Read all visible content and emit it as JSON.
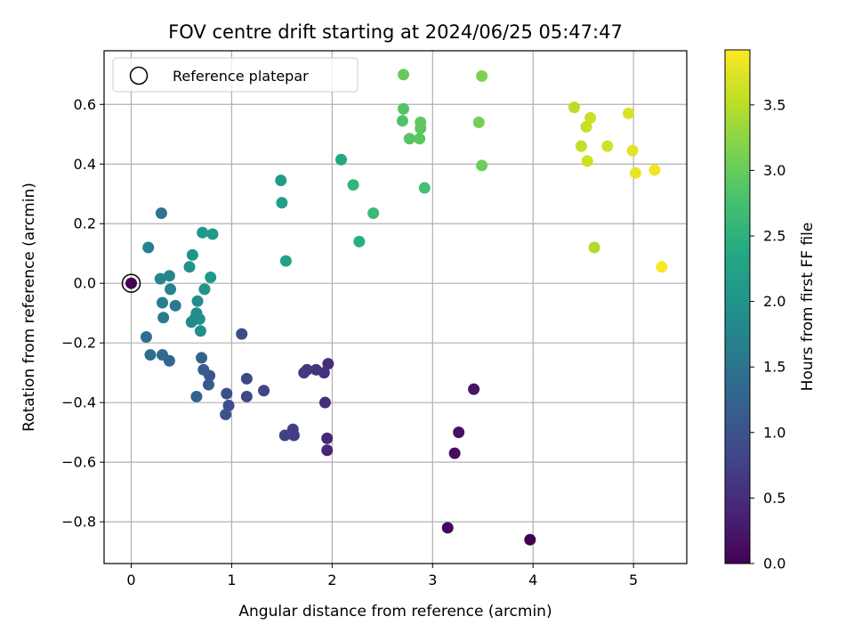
{
  "chart_data": {
    "type": "scatter",
    "title": "FOV centre drift starting at 2024/06/25 05:47:47",
    "xlabel": "Angular distance from reference (arcmin)",
    "ylabel": "Rotation from reference (arcmin)",
    "xlim": [
      -0.27,
      5.53
    ],
    "ylim": [
      -0.94,
      0.78
    ],
    "xticks": [
      0,
      1,
      2,
      3,
      4,
      5
    ],
    "xtick_labels": [
      "0",
      "1",
      "2",
      "3",
      "4",
      "5"
    ],
    "yticks": [
      -0.8,
      -0.6,
      -0.4,
      -0.2,
      0.0,
      0.2,
      0.4,
      0.6
    ],
    "ytick_labels": [
      "−0.8",
      "−0.6",
      "−0.4",
      "−0.2",
      "0.0",
      "0.2",
      "0.4",
      "0.6"
    ],
    "grid": true,
    "legend": {
      "position": "upper-left",
      "entries": [
        {
          "label": "Reference platepar",
          "marker": "open-circle"
        }
      ]
    },
    "reference_point": {
      "x": 0,
      "y": 0
    },
    "colormap": "viridis",
    "colorbar": {
      "label": "Hours from first FF file",
      "range": [
        0,
        3.92
      ],
      "ticks": [
        0.0,
        0.5,
        1.0,
        1.5,
        2.0,
        2.5,
        3.0,
        3.5
      ],
      "tick_labels": [
        "0.0",
        "0.5",
        "1.0",
        "1.5",
        "2.0",
        "2.5",
        "3.0",
        "3.5"
      ]
    },
    "points": [
      {
        "x": 3.97,
        "y": -0.86,
        "c": 0.0
      },
      {
        "x": 3.15,
        "y": -0.82,
        "c": 0.07
      },
      {
        "x": 3.22,
        "y": -0.57,
        "c": 0.13
      },
      {
        "x": 3.26,
        "y": -0.5,
        "c": 0.18
      },
      {
        "x": 3.41,
        "y": -0.355,
        "c": 0.22
      },
      {
        "x": 1.95,
        "y": -0.56,
        "c": 0.4
      },
      {
        "x": 1.95,
        "y": -0.52,
        "c": 0.45
      },
      {
        "x": 1.93,
        "y": -0.4,
        "c": 0.5
      },
      {
        "x": 1.96,
        "y": -0.27,
        "c": 0.52
      },
      {
        "x": 1.92,
        "y": -0.3,
        "c": 0.55
      },
      {
        "x": 1.84,
        "y": -0.29,
        "c": 0.58
      },
      {
        "x": 1.75,
        "y": -0.29,
        "c": 0.62
      },
      {
        "x": 1.72,
        "y": -0.3,
        "c": 0.65
      },
      {
        "x": 1.62,
        "y": -0.51,
        "c": 0.68
      },
      {
        "x": 1.61,
        "y": -0.49,
        "c": 0.72
      },
      {
        "x": 1.53,
        "y": -0.51,
        "c": 0.76
      },
      {
        "x": 1.32,
        "y": -0.36,
        "c": 0.8
      },
      {
        "x": 1.15,
        "y": -0.38,
        "c": 0.84
      },
      {
        "x": 1.15,
        "y": -0.32,
        "c": 0.87
      },
      {
        "x": 1.1,
        "y": -0.17,
        "c": 0.9
      },
      {
        "x": 0.97,
        "y": -0.41,
        "c": 0.93
      },
      {
        "x": 0.95,
        "y": -0.37,
        "c": 0.95
      },
      {
        "x": 0.94,
        "y": -0.44,
        "c": 0.98
      },
      {
        "x": 0.78,
        "y": -0.31,
        "c": 1.05
      },
      {
        "x": 0.77,
        "y": -0.34,
        "c": 1.1
      },
      {
        "x": 0.72,
        "y": -0.29,
        "c": 1.15
      },
      {
        "x": 0.7,
        "y": -0.25,
        "c": 1.2
      },
      {
        "x": 0.65,
        "y": -0.38,
        "c": 1.25
      },
      {
        "x": 0.38,
        "y": -0.26,
        "c": 1.3
      },
      {
        "x": 0.31,
        "y": -0.24,
        "c": 1.35
      },
      {
        "x": 0.19,
        "y": -0.24,
        "c": 1.4
      },
      {
        "x": 0.15,
        "y": -0.18,
        "c": 1.45
      },
      {
        "x": 0.3,
        "y": 0.235,
        "c": 1.5
      },
      {
        "x": 0.44,
        "y": -0.075,
        "c": 1.55
      },
      {
        "x": 0.32,
        "y": -0.115,
        "c": 1.6
      },
      {
        "x": 0.31,
        "y": -0.065,
        "c": 1.65
      },
      {
        "x": 0.17,
        "y": 0.12,
        "c": 1.7
      },
      {
        "x": 0.39,
        "y": -0.02,
        "c": 1.72
      },
      {
        "x": 0.29,
        "y": 0.015,
        "c": 1.75
      },
      {
        "x": 0.38,
        "y": 0.025,
        "c": 1.78
      },
      {
        "x": 0.6,
        "y": -0.13,
        "c": 1.82
      },
      {
        "x": 0.63,
        "y": -0.12,
        "c": 1.85
      },
      {
        "x": 0.65,
        "y": -0.1,
        "c": 1.88
      },
      {
        "x": 0.68,
        "y": -0.12,
        "c": 1.9
      },
      {
        "x": 0.66,
        "y": -0.06,
        "c": 1.92
      },
      {
        "x": 0.69,
        "y": -0.16,
        "c": 1.95
      },
      {
        "x": 0.73,
        "y": -0.02,
        "c": 1.97
      },
      {
        "x": 0.58,
        "y": 0.055,
        "c": 2.0
      },
      {
        "x": 0.61,
        "y": 0.095,
        "c": 2.02
      },
      {
        "x": 0.71,
        "y": 0.17,
        "c": 2.05
      },
      {
        "x": 0.81,
        "y": 0.165,
        "c": 2.08
      },
      {
        "x": 0.79,
        "y": 0.02,
        "c": 2.1
      },
      {
        "x": 1.49,
        "y": 0.345,
        "c": 2.15
      },
      {
        "x": 1.5,
        "y": 0.27,
        "c": 2.2
      },
      {
        "x": 1.54,
        "y": 0.075,
        "c": 2.25
      },
      {
        "x": 2.09,
        "y": 0.415,
        "c": 2.35
      },
      {
        "x": 2.27,
        "y": 0.14,
        "c": 2.45
      },
      {
        "x": 2.21,
        "y": 0.33,
        "c": 2.55
      },
      {
        "x": 2.41,
        "y": 0.235,
        "c": 2.65
      },
      {
        "x": 2.92,
        "y": 0.32,
        "c": 2.75
      },
      {
        "x": 2.7,
        "y": 0.545,
        "c": 2.8
      },
      {
        "x": 2.71,
        "y": 0.585,
        "c": 2.85
      },
      {
        "x": 2.77,
        "y": 0.485,
        "c": 2.88
      },
      {
        "x": 2.87,
        "y": 0.485,
        "c": 2.9
      },
      {
        "x": 2.88,
        "y": 0.52,
        "c": 2.92
      },
      {
        "x": 2.88,
        "y": 0.54,
        "c": 2.95
      },
      {
        "x": 2.71,
        "y": 0.7,
        "c": 2.98
      },
      {
        "x": 3.49,
        "y": 0.395,
        "c": 3.05
      },
      {
        "x": 3.46,
        "y": 0.54,
        "c": 3.1
      },
      {
        "x": 3.49,
        "y": 0.695,
        "c": 3.15
      },
      {
        "x": 4.61,
        "y": 0.12,
        "c": 3.45
      },
      {
        "x": 4.41,
        "y": 0.59,
        "c": 3.5
      },
      {
        "x": 4.48,
        "y": 0.46,
        "c": 3.55
      },
      {
        "x": 4.53,
        "y": 0.525,
        "c": 3.58
      },
      {
        "x": 4.57,
        "y": 0.555,
        "c": 3.6
      },
      {
        "x": 4.54,
        "y": 0.41,
        "c": 3.62
      },
      {
        "x": 4.74,
        "y": 0.46,
        "c": 3.65
      },
      {
        "x": 4.95,
        "y": 0.57,
        "c": 3.7
      },
      {
        "x": 4.99,
        "y": 0.445,
        "c": 3.75
      },
      {
        "x": 5.02,
        "y": 0.37,
        "c": 3.8
      },
      {
        "x": 5.21,
        "y": 0.38,
        "c": 3.85
      },
      {
        "x": 5.28,
        "y": 0.055,
        "c": 3.9
      }
    ]
  }
}
